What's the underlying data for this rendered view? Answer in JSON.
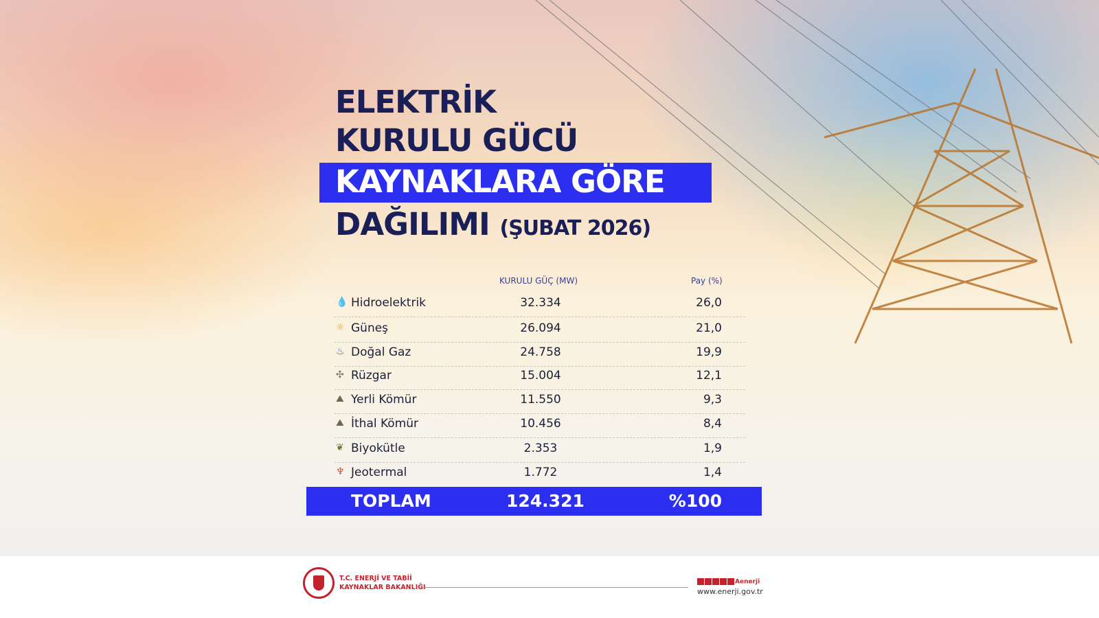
{
  "title": {
    "line1": "ELEKTRİK",
    "line2": "KURULU GÜCÜ",
    "line3": "KAYNAKLARA GÖRE",
    "line4": "DAĞILIMI",
    "period": "(ŞUBAT 2026)"
  },
  "colors": {
    "accent": "#2c2ff0",
    "title": "#1b1f57",
    "brand": "#c4232d"
  },
  "table": {
    "headers": {
      "capacity": "KURULU GÜÇ (MW)",
      "share": "Pay (%)"
    },
    "rows": [
      {
        "icon": "water-drop-icon",
        "name": "Hidroelektrik",
        "capacity": "32.334",
        "share": "26,0"
      },
      {
        "icon": "sun-icon",
        "name": "Güneş",
        "capacity": "26.094",
        "share": "21,0"
      },
      {
        "icon": "gas-flame-icon",
        "name": "Doğal Gaz",
        "capacity": "24.758",
        "share": "19,9"
      },
      {
        "icon": "wind-turbine-icon",
        "name": "Rüzgar",
        "capacity": "15.004",
        "share": "12,1"
      },
      {
        "icon": "coal-icon",
        "name": "Yerli Kömür",
        "capacity": "11.550",
        "share": "9,3"
      },
      {
        "icon": "coal-icon",
        "name": "İthal Kömür",
        "capacity": "10.456",
        "share": "8,4"
      },
      {
        "icon": "biomass-icon",
        "name": "Biyokütle",
        "capacity": "2.353",
        "share": "1,9"
      },
      {
        "icon": "geothermal-icon",
        "name": "Jeotermal",
        "capacity": "1.772",
        "share": "1,4"
      }
    ],
    "total": {
      "label": "TOPLAM",
      "capacity": "124.321",
      "share": "%100"
    }
  },
  "footer": {
    "ministry_line1": "T.C. ENERJİ VE TABİİ",
    "ministry_line2": "KAYNAKLAR BAKANLIĞI",
    "social_handle": "Aenerji",
    "website": "www.enerji.gov.tr"
  }
}
